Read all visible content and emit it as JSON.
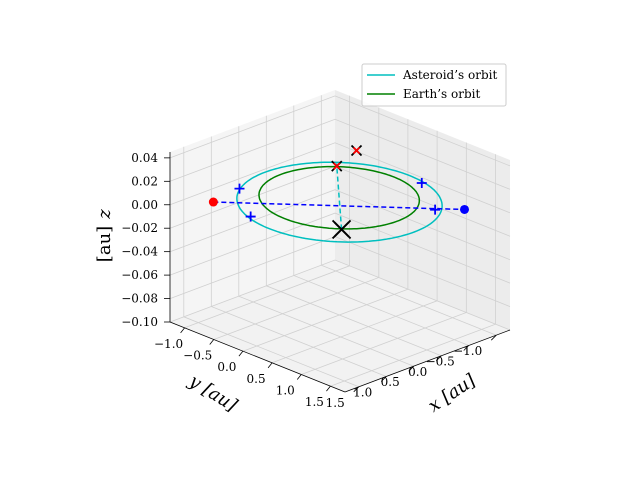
{
  "chart_data": {
    "type": "line",
    "projection": "3d",
    "xlabel": "x [au]",
    "ylabel": "y [au]",
    "zlabel": "z",
    "zlabel_unit": "[au]",
    "xlim": [
      -1.25,
      1.75
    ],
    "ylim": [
      -1.25,
      1.75
    ],
    "zlim": [
      -0.1,
      0.045
    ],
    "x_ticks": [
      "−1.0",
      "−0.5",
      "0.0",
      "0.5",
      "1.0",
      "1.5"
    ],
    "y_ticks": [
      "−1.0",
      "−0.5",
      "0.0",
      "0.5",
      "1.0",
      "1.5"
    ],
    "z_ticks": [
      "−0.10",
      "−0.08",
      "−0.06",
      "−0.04",
      "−0.02",
      "0.00",
      "0.02",
      "0.04"
    ],
    "x_tick_values": [
      -1.0,
      -0.5,
      0.0,
      0.5,
      1.0,
      1.5
    ],
    "y_tick_values": [
      -1.0,
      -0.5,
      0.0,
      0.5,
      1.0,
      1.5
    ],
    "z_tick_values": [
      -0.1,
      -0.08,
      -0.06,
      -0.04,
      -0.02,
      0.0,
      0.02,
      0.04
    ],
    "grid": true,
    "legend_position": "upper right",
    "series": [
      {
        "name": "Asteroid’s orbit",
        "color": "#00bfbf",
        "style": "solid",
        "kind": "ellipse",
        "center": [
          0.1,
          0.1
        ],
        "semi_axes": [
          1.28,
          1.28
        ],
        "z": 0.0
      },
      {
        "name": "Earth’s orbit",
        "color": "#008000",
        "style": "solid",
        "kind": "ellipse",
        "center": [
          0.0,
          0.0
        ],
        "semi_axes": [
          1.0,
          1.0
        ],
        "z": 0.0
      }
    ],
    "lines": [
      {
        "color": "#0000ff",
        "style": "dashed",
        "points": [
          [
            -0.95,
            1.28,
            0.0
          ],
          [
            1.3,
            -0.9,
            0.0
          ]
        ]
      },
      {
        "color": "#00bfbf",
        "style": "dashed",
        "points": [
          [
            0.72,
            0.72,
            0.0
          ],
          [
            -0.78,
            -0.78,
            0.0
          ]
        ]
      }
    ],
    "markers": [
      {
        "kind": "dot",
        "color": "#ff0000",
        "point": [
          -0.95,
          1.28,
          0.0
        ]
      },
      {
        "kind": "dot",
        "color": "#0000ff",
        "point": [
          1.3,
          -0.9,
          0.0
        ]
      },
      {
        "kind": "plus",
        "color": "#0000ff",
        "point": [
          -0.32,
          1.27,
          0.0
        ]
      },
      {
        "kind": "plus",
        "color": "#0000ff",
        "point": [
          -1.03,
          0.72,
          0.0
        ]
      },
      {
        "kind": "plus",
        "color": "#0000ff",
        "point": [
          1.06,
          -0.62,
          0.0
        ]
      },
      {
        "kind": "plus",
        "color": "#0000ff",
        "point": [
          0.36,
          -1.12,
          0.0
        ]
      },
      {
        "kind": "x",
        "color": "#000000",
        "size": 9,
        "point": [
          0.72,
          0.72,
          0.0
        ]
      },
      {
        "kind": "x",
        "color": "#000000",
        "size": 7,
        "point": [
          0.72,
          0.72,
          0.0
        ]
      },
      {
        "kind": "x",
        "color": "#000000",
        "size": 5,
        "point": [
          -0.72,
          -0.72,
          0.0
        ]
      },
      {
        "kind": "x",
        "color": "#ff0000",
        "size": 3,
        "point": [
          -0.72,
          -0.72,
          0.0
        ]
      },
      {
        "kind": "x",
        "color": "#000000",
        "size": 5,
        "point": [
          -0.9,
          -1.27,
          0.0
        ]
      },
      {
        "kind": "x",
        "color": "#ff0000",
        "size": 3,
        "point": [
          -0.9,
          -1.27,
          0.0
        ]
      }
    ]
  }
}
